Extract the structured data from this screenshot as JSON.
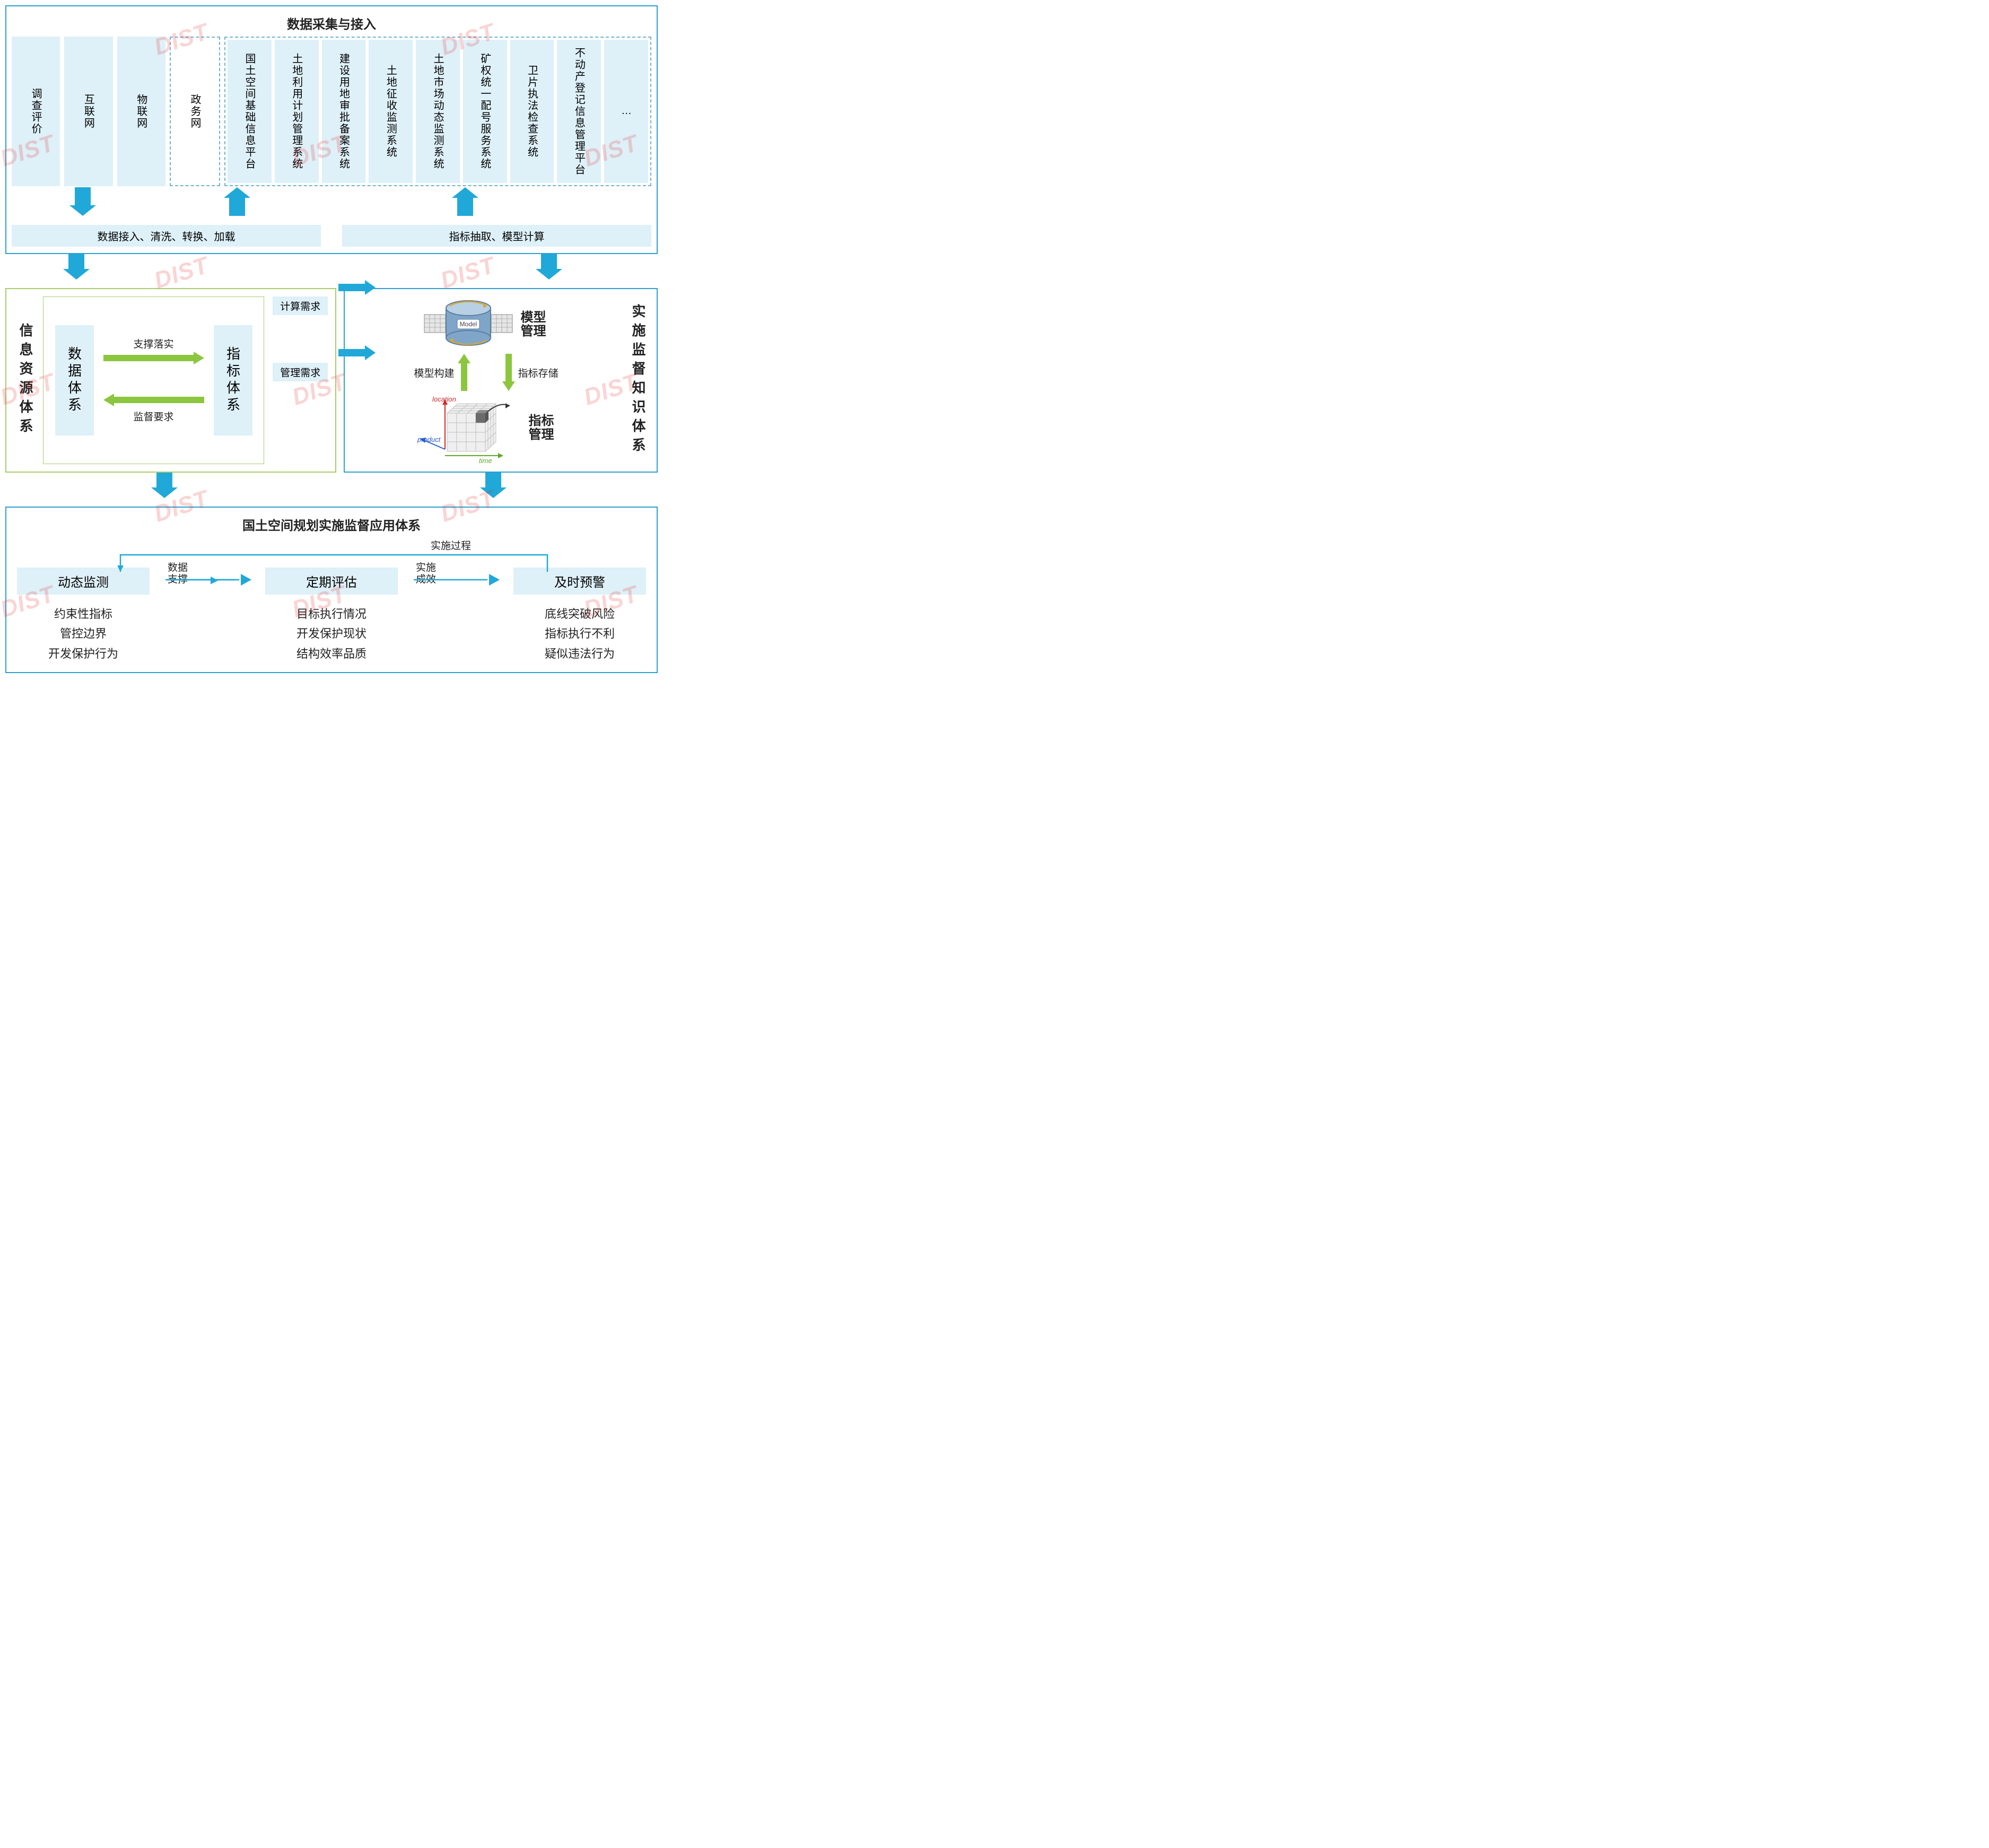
{
  "colors": {
    "panel_border": "#2da0cf",
    "light_fill": "#def0f8",
    "lighter_fill": "#e9f5fb",
    "arrow_blue": "#20a8d8",
    "arrow_green": "#8cc63f",
    "text": "#222222",
    "mid_left_border": "#a8cc6b",
    "mid_right_border": "#2da0cf",
    "cube_gray": "#bfbfbf",
    "cube_dark": "#6b6b6b",
    "db_blue": "#7fa6c9",
    "axis_red": "#d02a2a",
    "axis_blue": "#2a5fd0",
    "axis_green": "#5fa82a",
    "watermark": "rgba(230,40,40,0.20)"
  },
  "watermark_text": "DIST",
  "top": {
    "title": "数据采集与接入",
    "sources_left": [
      "调查评价",
      "互联网",
      "物联网"
    ],
    "source_dashed": "政务网",
    "sources_group": [
      "国土空间基础信息平台",
      "土地利用计划管理系统",
      "建设用地审批备案系统",
      "土地征收监测系统",
      "土地市场动态监测系统",
      "矿权统一配号服务系统",
      "卫片执法检查系统",
      "不动产登记信息管理平台",
      "…"
    ],
    "bar_left": "数据接入、清洗、转换、加载",
    "bar_right": "指标抽取、模型计算"
  },
  "mid": {
    "left_title": "信息资源体系",
    "box_a": "数据体系",
    "box_b": "指标体系",
    "arrow_ab": "支撑落实",
    "arrow_ba": "监督要求",
    "req1": "计算需求",
    "req2": "管理需求",
    "right_title": "实施监督知识体系",
    "model_mgmt": "模型管理",
    "index_mgmt": "指标管理",
    "arrow_up": "模型构建",
    "arrow_down": "指标存储",
    "db_label": "Model",
    "axis_location": "location",
    "axis_product": "product",
    "axis_time": "time"
  },
  "bottom": {
    "title": "国土空间规划实施监督应用体系",
    "feedback": "实施过程",
    "boxes": [
      "动态监测",
      "定期评估",
      "及时预警"
    ],
    "arr1": "数据支撑",
    "arr2": "实施成效",
    "lists": [
      [
        "约束性指标",
        "管控边界",
        "开发保护行为"
      ],
      [
        "目标执行情况",
        "开发保护现状",
        "结构效率品质"
      ],
      [
        "底线突破风险",
        "指标执行不利",
        "疑似违法行为"
      ]
    ]
  }
}
